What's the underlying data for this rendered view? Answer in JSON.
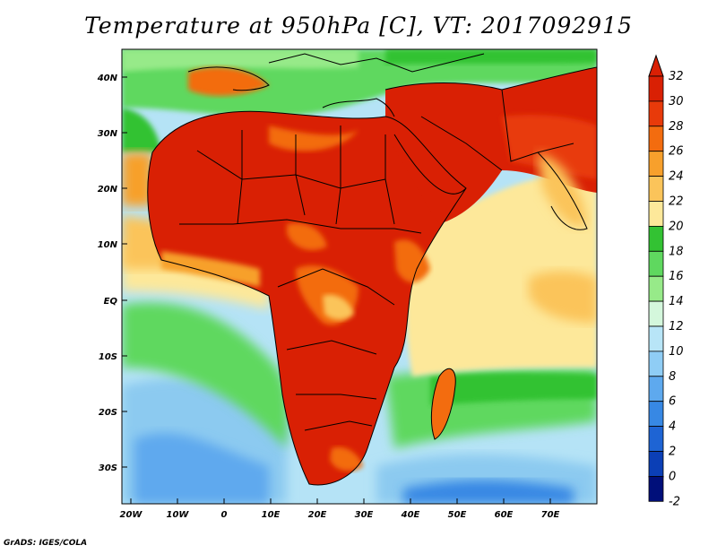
{
  "title": "Temperature at 950hPa [C], VT: 2017092915",
  "credit": "GrADS: IGES/COLA",
  "axes": {
    "lat_labels": [
      "40N",
      "30N",
      "20N",
      "10N",
      "EQ",
      "10S",
      "20S",
      "30S"
    ],
    "lon_labels": [
      "20W",
      "10W",
      "0",
      "10E",
      "20E",
      "30E",
      "40E",
      "50E",
      "60E",
      "70E"
    ]
  },
  "colorbar": {
    "labels": [
      "32",
      "30",
      "28",
      "26",
      "24",
      "22",
      "20",
      "18",
      "16",
      "14",
      "12",
      "10",
      "8",
      "6",
      "4",
      "2",
      "0",
      "-2"
    ],
    "colors": [
      "#d92004",
      "#e83a0a",
      "#f36c0f",
      "#f7a02c",
      "#fbc45a",
      "#fde89a",
      "#33c233",
      "#5fd85f",
      "#97ea89",
      "#d4f7dc",
      "#b8e5f7",
      "#8fcdf5",
      "#5ea9ee",
      "#3788e4",
      "#1e64d4",
      "#0b3fb6",
      "#000f7a",
      "#ffffff"
    ]
  },
  "palette": {
    "ocean_south": "#8ccaf0",
    "ocean_mid": "#b5e3f6",
    "ocean_cool": "#5ea9ee",
    "ocean_deep": "#3788e4",
    "land_hot": "#d92004",
    "land_warm": "#f36c0f",
    "land_mild": "#fbc45a",
    "indian_ocean": "#fde89a",
    "green": "#33c233",
    "med": "#5fd85f",
    "top_arrow": "#d92004",
    "bottom_arrow": "#e0e0ff"
  }
}
